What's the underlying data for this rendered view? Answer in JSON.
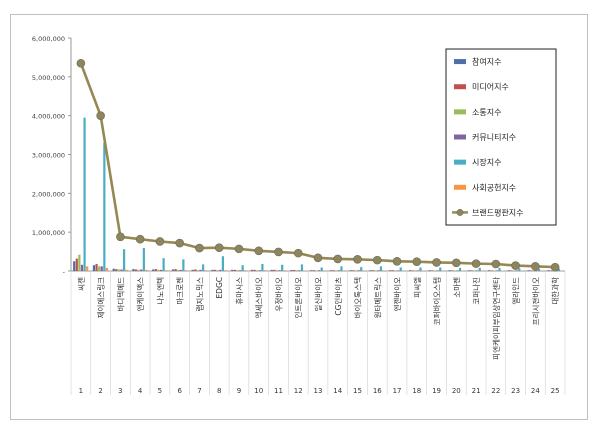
{
  "chart_data": {
    "type": "bar",
    "title": "",
    "xlabel": "",
    "ylabel": "",
    "ylim": [
      0,
      6000000
    ],
    "yticks": [
      "6,000,000",
      "5,000,000",
      "4,000,000",
      "3,000,000",
      "2,000,000",
      "1,000,000",
      "-"
    ],
    "grid": false,
    "legend_position": "top-right",
    "ranks": [
      "1",
      "2",
      "3",
      "4",
      "5",
      "6",
      "7",
      "8",
      "9",
      "10",
      "11",
      "12",
      "13",
      "14",
      "15",
      "16",
      "17",
      "18",
      "19",
      "20",
      "21",
      "22",
      "23",
      "24",
      "25"
    ],
    "categories": [
      "씨젠",
      "제이에스링크",
      "바디텍메드",
      "엔케이맥스",
      "나노엔텍",
      "마크로젠",
      "랩지노믹스",
      "EDGC",
      "휴마시스",
      "엑세스바이오",
      "우정바이오",
      "인트론바이오",
      "일신바이오",
      "CG인바이츠",
      "바이오톡스텍",
      "원타메트릭스",
      "엔젠바이오",
      "피씨엘",
      "코퍼바이오스텝",
      "소마젠",
      "코퍼나진",
      "피엔케이피부임상연구센타",
      "엘라인드",
      "프리시젼바이오",
      "대한과학"
    ],
    "series": [
      {
        "name": "참여지수",
        "color": "#4f6fa8",
        "values": [
          250000,
          150000,
          60000,
          50000,
          40000,
          40000,
          30000,
          30000,
          30000,
          30000,
          30000,
          25000,
          20000,
          20000,
          20000,
          20000,
          20000,
          20000,
          20000,
          20000,
          20000,
          20000,
          20000,
          20000,
          20000
        ]
      },
      {
        "name": "미디어지수",
        "color": "#c0504d",
        "values": [
          320000,
          180000,
          50000,
          40000,
          50000,
          50000,
          40000,
          30000,
          30000,
          30000,
          30000,
          25000,
          20000,
          20000,
          20000,
          20000,
          20000,
          15000,
          15000,
          15000,
          15000,
          15000,
          15000,
          15000,
          15000
        ]
      },
      {
        "name": "소통지수",
        "color": "#9bbb59",
        "values": [
          420000,
          120000,
          40000,
          30000,
          30000,
          30000,
          20000,
          20000,
          20000,
          20000,
          20000,
          20000,
          15000,
          15000,
          15000,
          15000,
          15000,
          15000,
          15000,
          15000,
          15000,
          15000,
          15000,
          15000,
          15000
        ]
      },
      {
        "name": "커뮤니티지수",
        "color": "#8064a2",
        "values": [
          160000,
          120000,
          40000,
          40000,
          30000,
          30000,
          30000,
          30000,
          20000,
          20000,
          20000,
          20000,
          20000,
          20000,
          20000,
          20000,
          15000,
          15000,
          15000,
          15000,
          15000,
          15000,
          15000,
          15000,
          15000
        ]
      },
      {
        "name": "시장지수",
        "color": "#4bacc6",
        "values": [
          3950000,
          3300000,
          560000,
          590000,
          330000,
          300000,
          170000,
          380000,
          150000,
          180000,
          160000,
          170000,
          90000,
          120000,
          100000,
          120000,
          90000,
          90000,
          90000,
          80000,
          80000,
          80000,
          70000,
          60000,
          60000
        ]
      },
      {
        "name": "사회공헌지수",
        "color": "#f79646",
        "values": [
          120000,
          80000,
          30000,
          30000,
          20000,
          20000,
          20000,
          20000,
          20000,
          20000,
          20000,
          15000,
          15000,
          15000,
          15000,
          15000,
          10000,
          10000,
          10000,
          10000,
          10000,
          10000,
          10000,
          10000,
          10000
        ]
      }
    ],
    "line_series": {
      "name": "브랜드평판지수",
      "color": "#938953",
      "marker_color": "#8c8560",
      "values": [
        5350000,
        4000000,
        880000,
        820000,
        760000,
        720000,
        590000,
        600000,
        570000,
        520000,
        490000,
        460000,
        340000,
        310000,
        300000,
        280000,
        250000,
        240000,
        220000,
        210000,
        190000,
        180000,
        140000,
        120000,
        100000
      ]
    }
  }
}
